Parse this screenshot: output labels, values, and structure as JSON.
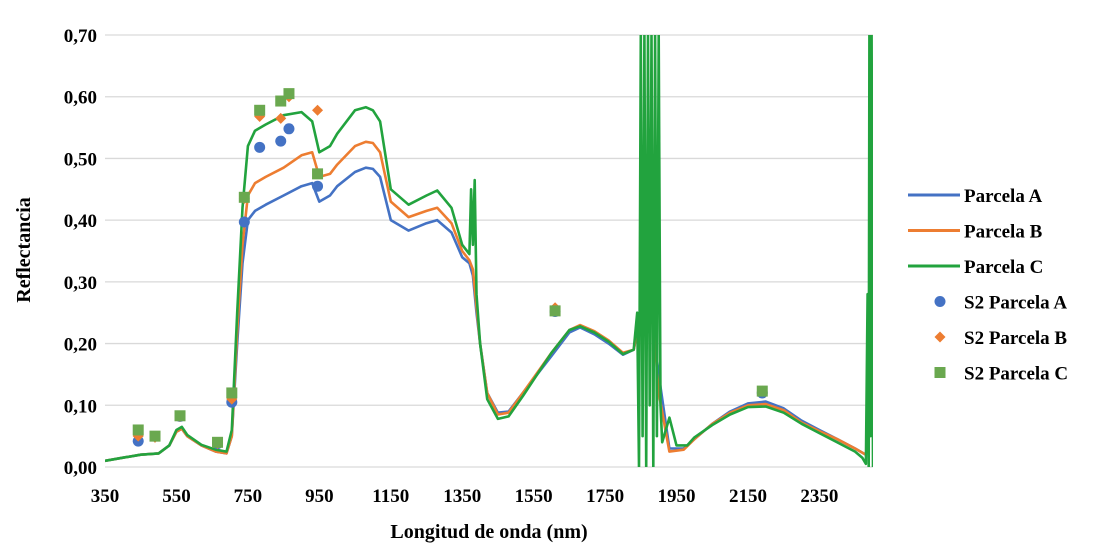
{
  "chart_data": {
    "type": "line",
    "title": "",
    "xlabel": "Longitud de onda (nm)",
    "ylabel": "Reflectancia",
    "xlim": [
      350,
      2500
    ],
    "ylim": [
      0,
      0.7
    ],
    "x_ticks": [
      350,
      550,
      750,
      950,
      1150,
      1350,
      1550,
      1750,
      1950,
      2150,
      2350
    ],
    "y_ticks": [
      0,
      0.1,
      0.2,
      0.3,
      0.4,
      0.5,
      0.6,
      0.7
    ],
    "x_tick_labels": [
      "350",
      "550",
      "750",
      "950",
      "1150",
      "1350",
      "1550",
      "1750",
      "1950",
      "2150",
      "2350"
    ],
    "y_tick_labels": [
      "0,00",
      "0,10",
      "0,20",
      "0,30",
      "0,40",
      "0,50",
      "0,60",
      "0,70"
    ],
    "grid": "horizontal",
    "legend_position": "right",
    "line_series": [
      {
        "name": "Parcela A",
        "color": "#4472C4",
        "points": [
          [
            350,
            0.01
          ],
          [
            400,
            0.015
          ],
          [
            450,
            0.02
          ],
          [
            500,
            0.022
          ],
          [
            530,
            0.035
          ],
          [
            550,
            0.057
          ],
          [
            565,
            0.062
          ],
          [
            580,
            0.05
          ],
          [
            620,
            0.035
          ],
          [
            660,
            0.025
          ],
          [
            690,
            0.022
          ],
          [
            705,
            0.05
          ],
          [
            720,
            0.2
          ],
          [
            735,
            0.33
          ],
          [
            750,
            0.4
          ],
          [
            770,
            0.415
          ],
          [
            800,
            0.425
          ],
          [
            850,
            0.44
          ],
          [
            900,
            0.455
          ],
          [
            930,
            0.46
          ],
          [
            950,
            0.43
          ],
          [
            980,
            0.44
          ],
          [
            1000,
            0.455
          ],
          [
            1050,
            0.478
          ],
          [
            1080,
            0.485
          ],
          [
            1100,
            0.483
          ],
          [
            1120,
            0.47
          ],
          [
            1150,
            0.4
          ],
          [
            1200,
            0.383
          ],
          [
            1250,
            0.395
          ],
          [
            1280,
            0.4
          ],
          [
            1320,
            0.38
          ],
          [
            1350,
            0.34
          ],
          [
            1370,
            0.33
          ],
          [
            1380,
            0.31
          ],
          [
            1390,
            0.25
          ],
          [
            1400,
            0.2
          ],
          [
            1420,
            0.12
          ],
          [
            1450,
            0.088
          ],
          [
            1480,
            0.09
          ],
          [
            1520,
            0.12
          ],
          [
            1600,
            0.18
          ],
          [
            1650,
            0.218
          ],
          [
            1680,
            0.226
          ],
          [
            1720,
            0.215
          ],
          [
            1760,
            0.2
          ],
          [
            1800,
            0.182
          ],
          [
            1830,
            0.19
          ],
          [
            1850,
            0.25
          ],
          [
            1870,
            0.3
          ],
          [
            1900,
            0.15
          ],
          [
            1930,
            0.03
          ],
          [
            1970,
            0.03
          ],
          [
            2000,
            0.045
          ],
          [
            2050,
            0.07
          ],
          [
            2100,
            0.09
          ],
          [
            2150,
            0.103
          ],
          [
            2200,
            0.106
          ],
          [
            2250,
            0.095
          ],
          [
            2300,
            0.075
          ],
          [
            2350,
            0.06
          ],
          [
            2400,
            0.045
          ],
          [
            2450,
            0.03
          ],
          [
            2480,
            0.02
          ]
        ]
      },
      {
        "name": "Parcela B",
        "color": "#ED7D31",
        "points": [
          [
            350,
            0.01
          ],
          [
            400,
            0.015
          ],
          [
            450,
            0.02
          ],
          [
            500,
            0.022
          ],
          [
            530,
            0.035
          ],
          [
            550,
            0.057
          ],
          [
            565,
            0.062
          ],
          [
            580,
            0.05
          ],
          [
            620,
            0.035
          ],
          [
            660,
            0.025
          ],
          [
            690,
            0.022
          ],
          [
            705,
            0.05
          ],
          [
            720,
            0.22
          ],
          [
            735,
            0.36
          ],
          [
            750,
            0.44
          ],
          [
            770,
            0.46
          ],
          [
            800,
            0.47
          ],
          [
            850,
            0.485
          ],
          [
            900,
            0.505
          ],
          [
            930,
            0.51
          ],
          [
            950,
            0.47
          ],
          [
            980,
            0.475
          ],
          [
            1000,
            0.49
          ],
          [
            1050,
            0.52
          ],
          [
            1080,
            0.527
          ],
          [
            1100,
            0.525
          ],
          [
            1120,
            0.51
          ],
          [
            1150,
            0.43
          ],
          [
            1200,
            0.405
          ],
          [
            1250,
            0.415
          ],
          [
            1280,
            0.42
          ],
          [
            1320,
            0.395
          ],
          [
            1350,
            0.35
          ],
          [
            1370,
            0.335
          ],
          [
            1380,
            0.32
          ],
          [
            1390,
            0.26
          ],
          [
            1400,
            0.2
          ],
          [
            1420,
            0.12
          ],
          [
            1450,
            0.085
          ],
          [
            1480,
            0.088
          ],
          [
            1520,
            0.12
          ],
          [
            1600,
            0.185
          ],
          [
            1650,
            0.222
          ],
          [
            1680,
            0.23
          ],
          [
            1720,
            0.22
          ],
          [
            1760,
            0.205
          ],
          [
            1800,
            0.185
          ],
          [
            1830,
            0.19
          ],
          [
            1850,
            0.25
          ],
          [
            1870,
            0.35
          ],
          [
            1900,
            0.12
          ],
          [
            1930,
            0.025
          ],
          [
            1970,
            0.028
          ],
          [
            2000,
            0.045
          ],
          [
            2050,
            0.07
          ],
          [
            2100,
            0.088
          ],
          [
            2150,
            0.1
          ],
          [
            2200,
            0.102
          ],
          [
            2250,
            0.092
          ],
          [
            2300,
            0.072
          ],
          [
            2350,
            0.058
          ],
          [
            2400,
            0.045
          ],
          [
            2450,
            0.03
          ],
          [
            2480,
            0.02
          ]
        ]
      },
      {
        "name": "Parcela C",
        "color": "#22A33E",
        "points": [
          [
            350,
            0.01
          ],
          [
            400,
            0.015
          ],
          [
            450,
            0.02
          ],
          [
            500,
            0.022
          ],
          [
            530,
            0.035
          ],
          [
            550,
            0.06
          ],
          [
            565,
            0.065
          ],
          [
            580,
            0.052
          ],
          [
            620,
            0.036
          ],
          [
            660,
            0.028
          ],
          [
            690,
            0.025
          ],
          [
            705,
            0.06
          ],
          [
            720,
            0.25
          ],
          [
            735,
            0.42
          ],
          [
            750,
            0.52
          ],
          [
            770,
            0.545
          ],
          [
            800,
            0.555
          ],
          [
            850,
            0.57
          ],
          [
            900,
            0.575
          ],
          [
            930,
            0.56
          ],
          [
            950,
            0.51
          ],
          [
            980,
            0.52
          ],
          [
            1000,
            0.54
          ],
          [
            1050,
            0.578
          ],
          [
            1080,
            0.583
          ],
          [
            1100,
            0.578
          ],
          [
            1120,
            0.56
          ],
          [
            1150,
            0.45
          ],
          [
            1200,
            0.425
          ],
          [
            1250,
            0.44
          ],
          [
            1280,
            0.448
          ],
          [
            1320,
            0.42
          ],
          [
            1350,
            0.36
          ],
          [
            1370,
            0.345
          ],
          [
            1375,
            0.45
          ],
          [
            1380,
            0.36
          ],
          [
            1385,
            0.465
          ],
          [
            1390,
            0.28
          ],
          [
            1400,
            0.2
          ],
          [
            1420,
            0.11
          ],
          [
            1450,
            0.078
          ],
          [
            1480,
            0.082
          ],
          [
            1520,
            0.115
          ],
          [
            1600,
            0.185
          ],
          [
            1650,
            0.222
          ],
          [
            1680,
            0.228
          ],
          [
            1720,
            0.218
          ],
          [
            1760,
            0.203
          ],
          [
            1800,
            0.183
          ],
          [
            1830,
            0.19
          ],
          [
            1840,
            0.25
          ],
          [
            1845,
            0.0
          ],
          [
            1850,
            0.7
          ],
          [
            1855,
            0.05
          ],
          [
            1860,
            0.7
          ],
          [
            1865,
            0.0
          ],
          [
            1870,
            0.7
          ],
          [
            1875,
            0.1
          ],
          [
            1880,
            0.7
          ],
          [
            1885,
            0.0
          ],
          [
            1890,
            0.7
          ],
          [
            1895,
            0.05
          ],
          [
            1900,
            0.7
          ],
          [
            1905,
            0.1
          ],
          [
            1910,
            0.04
          ],
          [
            1930,
            0.08
          ],
          [
            1950,
            0.035
          ],
          [
            1980,
            0.035
          ],
          [
            2000,
            0.048
          ],
          [
            2050,
            0.068
          ],
          [
            2100,
            0.085
          ],
          [
            2150,
            0.097
          ],
          [
            2200,
            0.098
          ],
          [
            2250,
            0.088
          ],
          [
            2300,
            0.07
          ],
          [
            2350,
            0.055
          ],
          [
            2400,
            0.04
          ],
          [
            2450,
            0.025
          ],
          [
            2470,
            0.015
          ],
          [
            2480,
            0.005
          ],
          [
            2485,
            0.28
          ],
          [
            2488,
            0.0
          ],
          [
            2490,
            0.7
          ],
          [
            2493,
            0.05
          ],
          [
            2496,
            0.7
          ],
          [
            2500,
            0.0
          ],
          [
            2503,
            0.44
          ],
          [
            2505,
            0.0
          ]
        ]
      }
    ],
    "scatter_series": [
      {
        "name": "S2 Parcela A",
        "color": "#4472C4",
        "marker": "circle",
        "points": [
          [
            443,
            0.042
          ],
          [
            560,
            0.082
          ],
          [
            665,
            0.038
          ],
          [
            705,
            0.105
          ],
          [
            740,
            0.397
          ],
          [
            783,
            0.518
          ],
          [
            842,
            0.528
          ],
          [
            865,
            0.548
          ],
          [
            945,
            0.455
          ],
          [
            1610,
            0.252
          ],
          [
            2190,
            0.12
          ]
        ]
      },
      {
        "name": "S2 Parcela B",
        "color": "#ED7D31",
        "marker": "diamond",
        "points": [
          [
            443,
            0.05
          ],
          [
            490,
            0.048
          ],
          [
            560,
            0.082
          ],
          [
            665,
            0.038
          ],
          [
            705,
            0.11
          ],
          [
            740,
            0.435
          ],
          [
            783,
            0.568
          ],
          [
            842,
            0.565
          ],
          [
            865,
            0.6
          ],
          [
            945,
            0.578
          ],
          [
            1610,
            0.258
          ],
          [
            2190,
            0.123
          ]
        ]
      },
      {
        "name": "S2 Parcela C",
        "color": "#6AA84F",
        "marker": "square",
        "points": [
          [
            443,
            0.06
          ],
          [
            490,
            0.05
          ],
          [
            560,
            0.083
          ],
          [
            665,
            0.04
          ],
          [
            705,
            0.12
          ],
          [
            740,
            0.437
          ],
          [
            783,
            0.578
          ],
          [
            842,
            0.593
          ],
          [
            865,
            0.605
          ],
          [
            945,
            0.475
          ],
          [
            1610,
            0.253
          ],
          [
            2190,
            0.123
          ]
        ]
      }
    ]
  }
}
